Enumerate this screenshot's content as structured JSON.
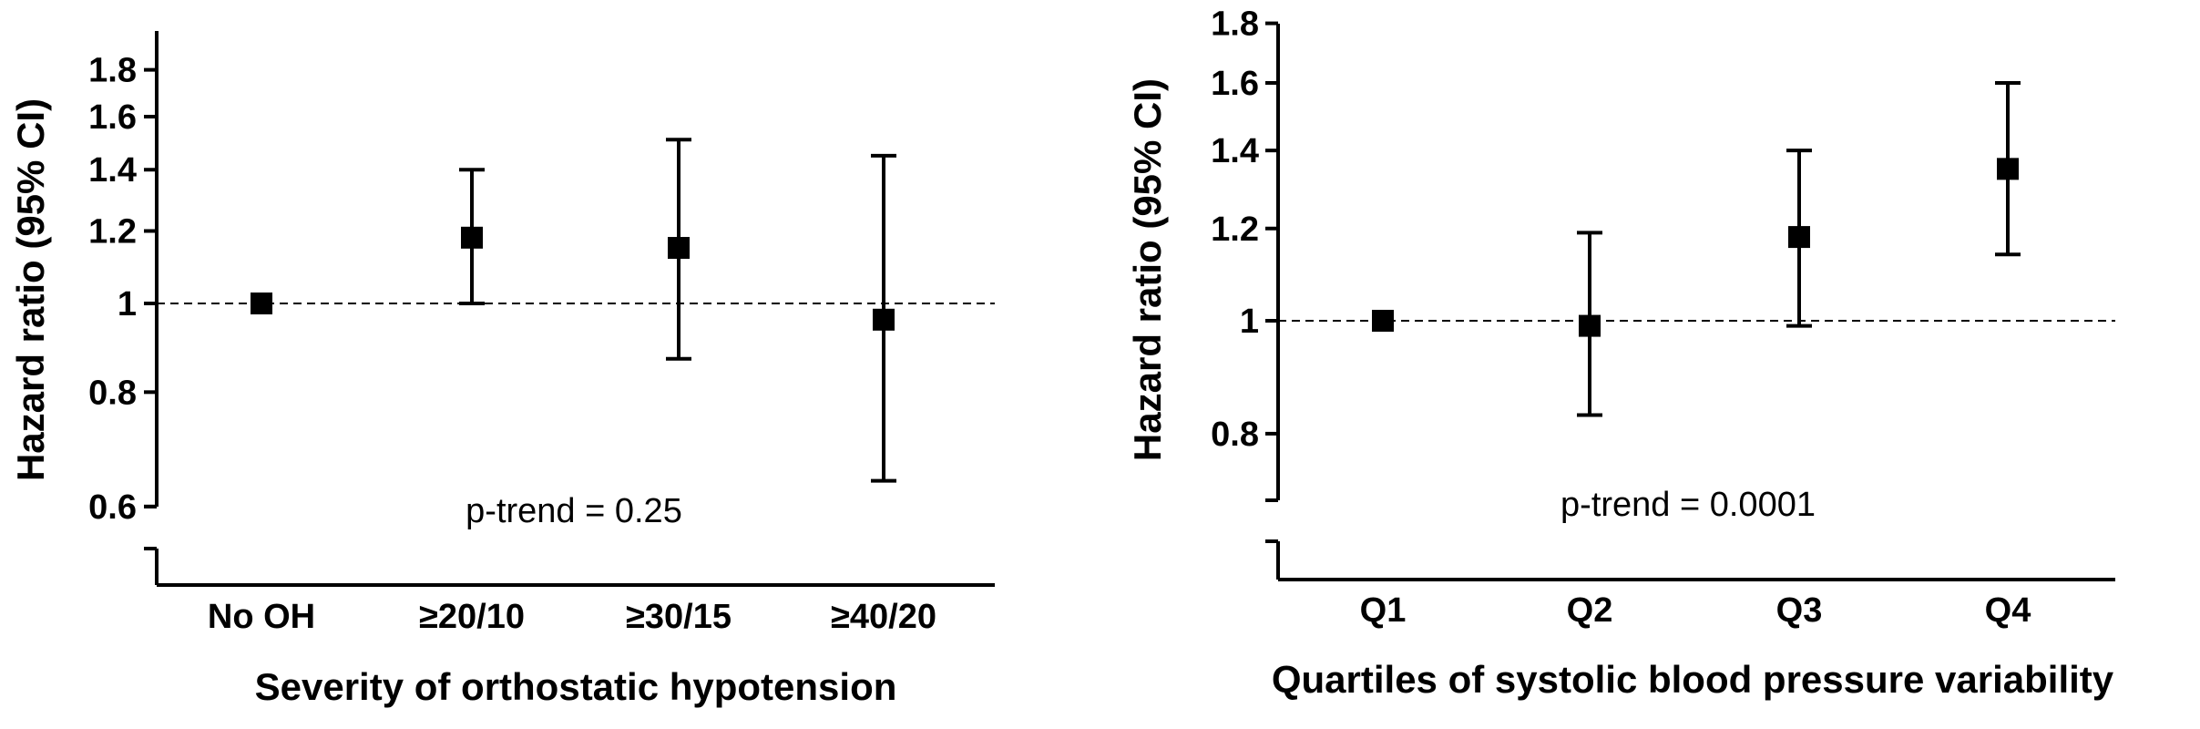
{
  "chart_data": [
    {
      "type": "scatter",
      "scale": "log",
      "xlabel": "Severity of orthostatic hypotension",
      "ylabel": "Hazard ratio (95% CI)",
      "categories": [
        "No OH",
        "≥20/10",
        "≥30/15",
        "≥40/20"
      ],
      "yticks": [
        "0.6",
        "0.8",
        "1",
        "1.2",
        "1.4",
        "1.6",
        "1.8"
      ],
      "ylim": [
        0.55,
        1.95
      ],
      "axis_break": true,
      "reference_line": 1,
      "series": [
        {
          "values": [
            1.0,
            1.18,
            1.15,
            0.96
          ],
          "ci_low": [
            1.0,
            1.0,
            0.87,
            0.64
          ],
          "ci_high": [
            1.0,
            1.4,
            1.51,
            1.45
          ]
        }
      ],
      "annotation": "p-trend = 0.25"
    },
    {
      "type": "scatter",
      "scale": "log",
      "xlabel": "Quartiles of systolic blood pressure variability",
      "ylabel": "Hazard ratio (95% CI)",
      "categories": [
        "Q1",
        "Q2",
        "Q3",
        "Q4"
      ],
      "yticks": [
        "0.8",
        "1",
        "1.2",
        "1.4",
        "1.6",
        "1.8"
      ],
      "ylim": [
        0.62,
        1.82
      ],
      "axis_break": true,
      "reference_line": 1,
      "series": [
        {
          "values": [
            1.0,
            0.99,
            1.18,
            1.35
          ],
          "ci_low": [
            1.0,
            0.83,
            0.99,
            1.14
          ],
          "ci_high": [
            1.0,
            1.19,
            1.4,
            1.6
          ]
        }
      ],
      "annotation": "p-trend = 0.0001"
    }
  ]
}
